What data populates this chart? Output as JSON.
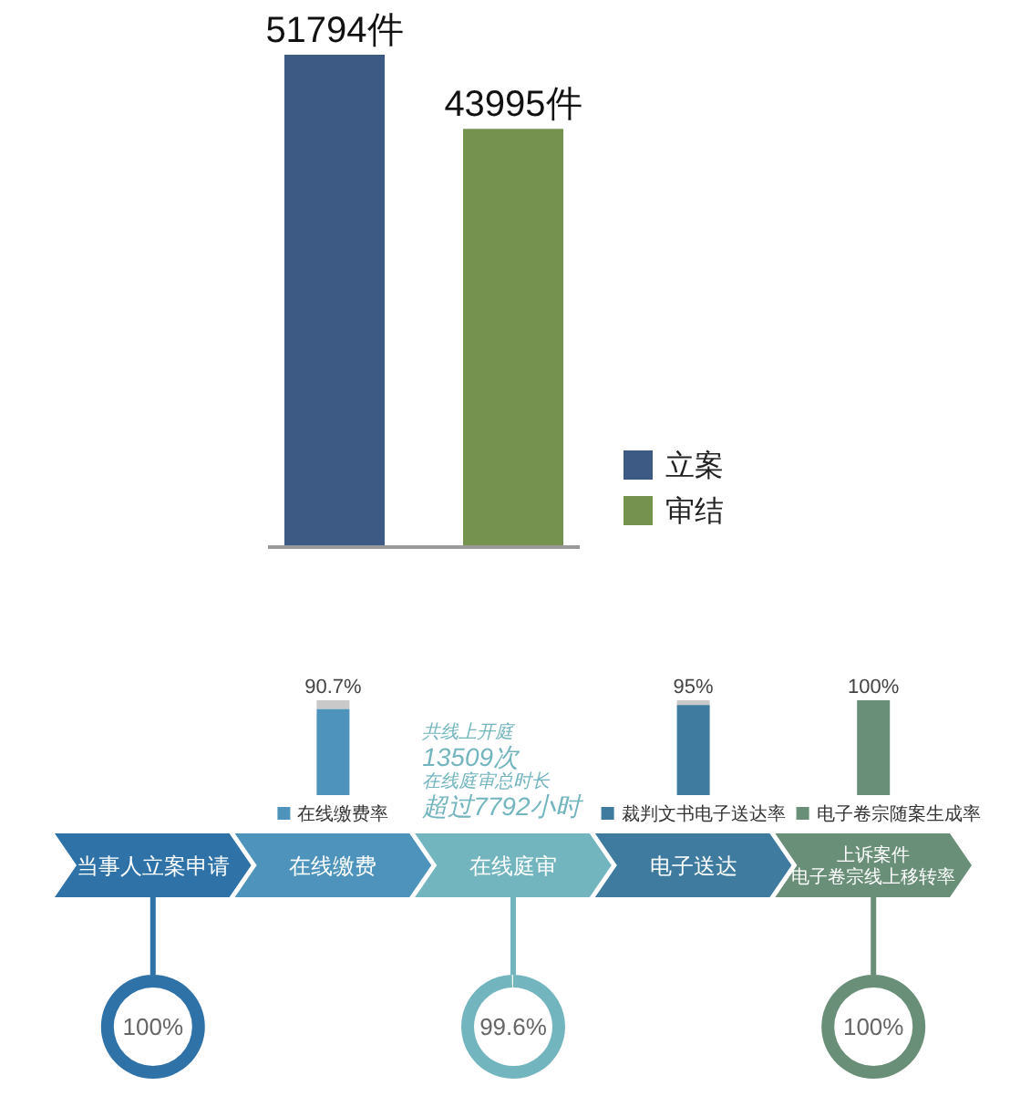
{
  "chart_data": [
    {
      "type": "bar",
      "categories": [
        null
      ],
      "series": [
        {
          "name": "立案",
          "color": "#3d5a85",
          "values": [
            51794
          ],
          "value_labels": [
            "51794件"
          ]
        },
        {
          "name": "审结",
          "color": "#76924f",
          "values": [
            43995
          ],
          "value_labels": [
            "43995件"
          ]
        }
      ],
      "legend": "right"
    },
    {
      "type": "bar",
      "categories": [
        null,
        "在线缴费率",
        null,
        "裁判文书电子送达率",
        "电子卷宗随案生成率"
      ],
      "values": [
        null,
        90.7,
        null,
        95,
        100
      ],
      "value_labels": [
        null,
        "90.7%",
        null,
        "95%",
        "100%"
      ],
      "colors": [
        null,
        "#4d93bb",
        null,
        "#3f7b9f",
        "#6a8f78"
      ]
    },
    {
      "type": "other",
      "categories": [
        "当事人立案申请",
        "在线缴费",
        "在线庭审",
        "电子送达",
        "上诉案件电子卷宗线上移转率"
      ],
      "colors": [
        "#2e72a8",
        "#4d93bb",
        "#72b5be",
        "#3f7b9f",
        "#6a8f78"
      ],
      "values": [
        100,
        null,
        99.6,
        null,
        100
      ],
      "value_labels": [
        "100%",
        null,
        "99.6%",
        null,
        "100%"
      ],
      "annotations": [
        "共线上开庭",
        "13509次",
        "在线庭审总时长",
        "超过7792小时"
      ]
    }
  ]
}
